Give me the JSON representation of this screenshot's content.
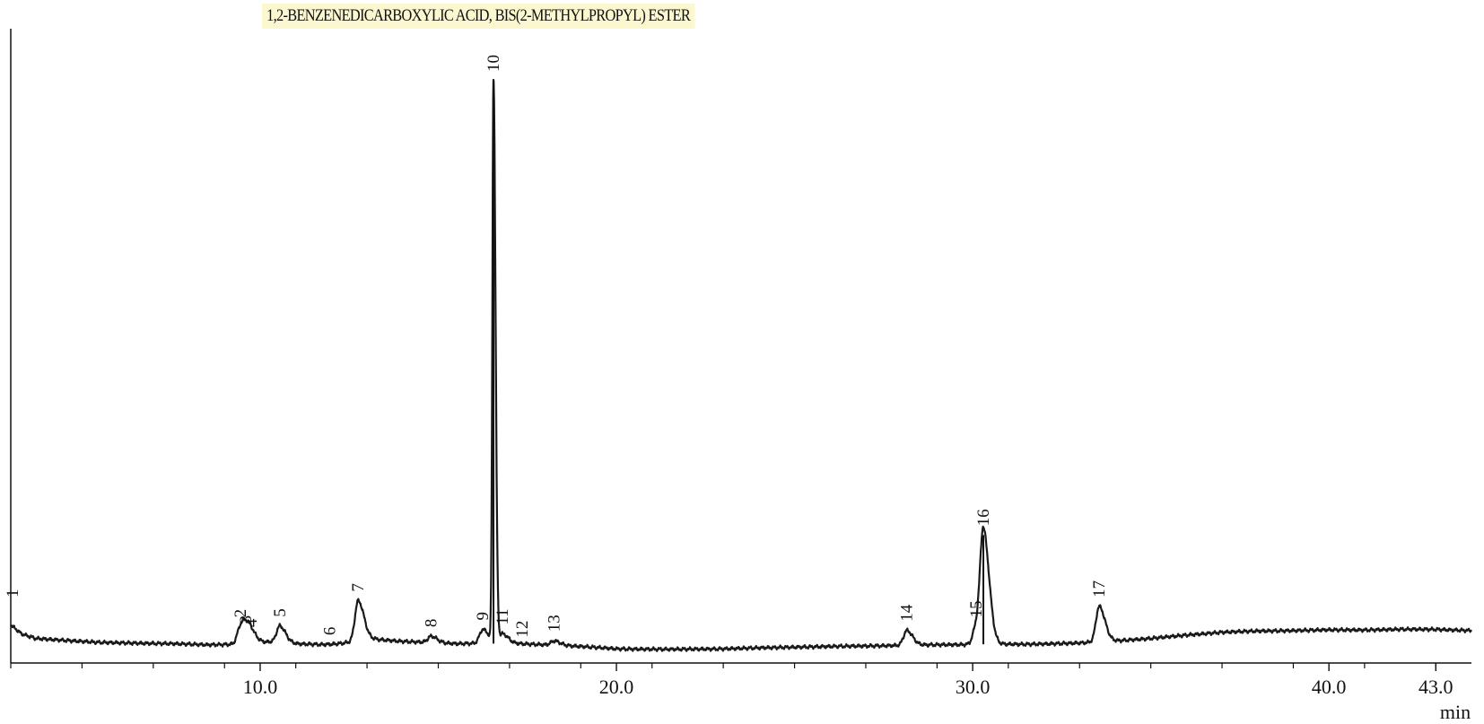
{
  "chart_data": {
    "type": "line",
    "title": "1,2-BENZENEDICARBOXYLIC ACID, BIS(2-METHYLPROPYL) ESTER",
    "xlabel": "min",
    "ylabel": "",
    "xlim": [
      3.0,
      44.0
    ],
    "ylim": [
      0,
      100
    ],
    "grid": false,
    "x_ticks": [
      10,
      20,
      30,
      40,
      43
    ],
    "x_tick_labels": [
      "10.0",
      "20.0",
      "30.0",
      "40.0",
      "43.0"
    ],
    "x_minor_ticks": [
      3,
      5,
      7,
      9,
      11,
      13,
      15,
      17,
      19,
      21,
      23,
      25,
      27,
      29,
      31,
      33,
      35,
      37,
      39,
      41,
      43
    ],
    "peaks": [
      {
        "label": "1",
        "x": 3.05,
        "y": 8.0
      },
      {
        "label": "2",
        "x": 9.45,
        "y": 4.5
      },
      {
        "label": "3",
        "x": 9.6,
        "y": 3.4
      },
      {
        "label": "4",
        "x": 9.75,
        "y": 2.8
      },
      {
        "label": "5",
        "x": 10.55,
        "y": 4.6
      },
      {
        "label": "6",
        "x": 11.95,
        "y": 1.4
      },
      {
        "label": "7",
        "x": 12.75,
        "y": 9.0
      },
      {
        "label": "8",
        "x": 14.8,
        "y": 2.8
      },
      {
        "label": "9",
        "x": 16.25,
        "y": 4.0
      },
      {
        "label": "10",
        "x": 16.55,
        "y": 100.0
      },
      {
        "label": "11",
        "x": 16.8,
        "y": 3.2
      },
      {
        "label": "12",
        "x": 17.35,
        "y": 1.0
      },
      {
        "label": "13",
        "x": 18.25,
        "y": 2.0
      },
      {
        "label": "14",
        "x": 28.15,
        "y": 3.8
      },
      {
        "label": "15",
        "x": 30.1,
        "y": 4.5
      },
      {
        "label": "16",
        "x": 30.3,
        "y": 20.5
      },
      {
        "label": "17",
        "x": 33.55,
        "y": 8.0
      }
    ],
    "baseline": [
      [
        3.0,
        4.8
      ],
      [
        3.3,
        3.2
      ],
      [
        3.7,
        2.4
      ],
      [
        4.5,
        2.1
      ],
      [
        5.5,
        1.7
      ],
      [
        6.5,
        1.6
      ],
      [
        7.5,
        1.5
      ],
      [
        8.5,
        1.3
      ],
      [
        9.3,
        1.4
      ],
      [
        10.3,
        1.8
      ],
      [
        11.0,
        1.5
      ],
      [
        12.0,
        1.3
      ],
      [
        12.6,
        1.8
      ],
      [
        13.2,
        2.3
      ],
      [
        14.0,
        1.9
      ],
      [
        15.5,
        1.5
      ],
      [
        16.4,
        1.6
      ],
      [
        16.75,
        1.4
      ],
      [
        17.2,
        1.5
      ],
      [
        18.5,
        1.2
      ],
      [
        20.0,
        0.6
      ],
      [
        21.5,
        0.5
      ],
      [
        23.0,
        0.6
      ],
      [
        25.0,
        0.9
      ],
      [
        27.0,
        1.1
      ],
      [
        29.0,
        1.3
      ],
      [
        30.5,
        1.4
      ],
      [
        31.5,
        1.4
      ],
      [
        33.0,
        1.6
      ],
      [
        34.0,
        2.0
      ],
      [
        35.0,
        2.4
      ],
      [
        36.0,
        3.0
      ],
      [
        37.0,
        3.5
      ],
      [
        38.0,
        3.7
      ],
      [
        39.0,
        3.8
      ],
      [
        40.0,
        3.9
      ],
      [
        41.0,
        3.9
      ],
      [
        42.0,
        4.0
      ],
      [
        43.0,
        4.0
      ],
      [
        44.0,
        3.8
      ]
    ],
    "peak_width_min": 0.09
  }
}
